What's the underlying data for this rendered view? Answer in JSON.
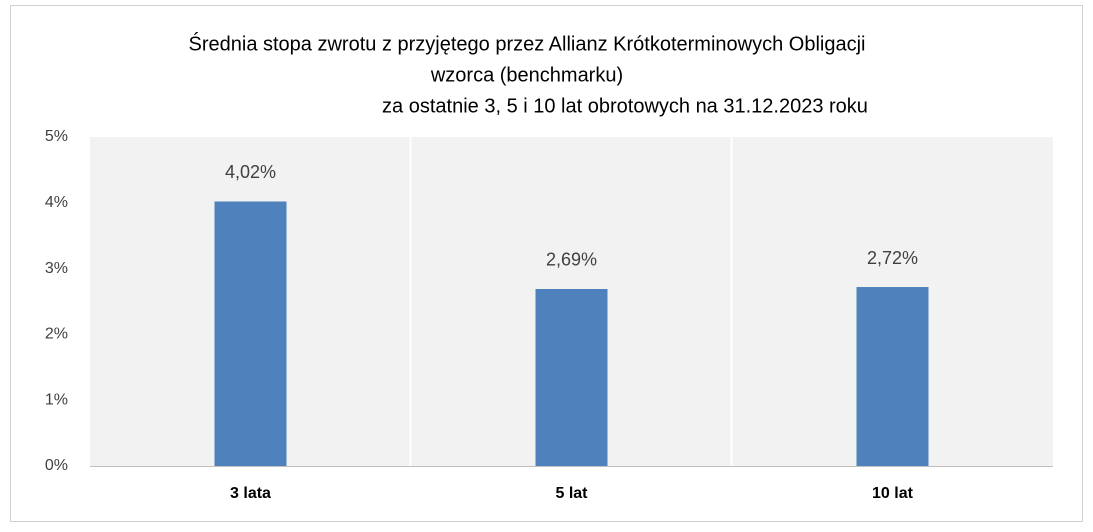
{
  "chart_data": {
    "type": "bar",
    "title": [
      "Średnia stopa zwrotu z przyjętego przez Allianz Krótkoterminowych Obligacji",
      "wzorca (benchmarku)",
      "za ostatnie 3, 5 i 10 lat obrotowych na 31.12.2023 roku"
    ],
    "categories": [
      "3 lata",
      "5 lat",
      "10 lat"
    ],
    "values": [
      4.02,
      2.69,
      2.72
    ],
    "value_labels": [
      "4,02%",
      "2,69%",
      "2,72%"
    ],
    "color": "#4f81bd",
    "ylim": [
      0,
      5
    ],
    "yticks": [
      {
        "value": 0,
        "label": "0%"
      },
      {
        "value": 1,
        "label": "1%"
      },
      {
        "value": 2,
        "label": "2%"
      },
      {
        "value": 3,
        "label": "3%"
      },
      {
        "value": 4,
        "label": "4%"
      },
      {
        "value": 5,
        "label": "5%"
      }
    ],
    "grid": false
  }
}
